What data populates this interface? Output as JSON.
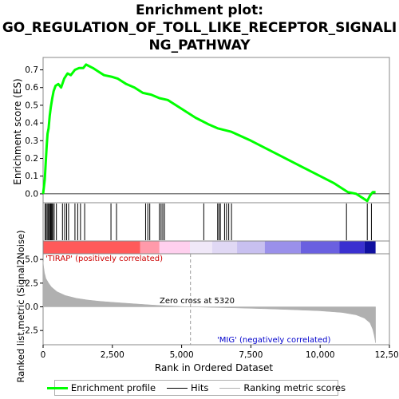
{
  "chart_data": {
    "type": "line",
    "title": "Enrichment plot: GO_REGULATION_OF_TOLL_LIKE_RECEPTOR_SIGNALING_PATHWAY",
    "title_lines": [
      "Enrichment plot:",
      "GO_REGULATION_OF_TOLL_LIKE_RECEPTOR_SIGNALI",
      "NG_PATHWAY"
    ],
    "xlabel": "Rank in Ordered Dataset",
    "xlim": [
      0,
      12500
    ],
    "x_ticks": [
      0,
      2500,
      5000,
      7500,
      10000,
      12500
    ],
    "x_tick_labels": [
      "0",
      "2,500",
      "5,000",
      "7,500",
      "10,000",
      "12,500"
    ],
    "es_panel": {
      "ylabel": "Enrichment score (ES)",
      "ylim": [
        -0.05,
        0.77
      ],
      "y_ticks": [
        0.0,
        0.1,
        0.2,
        0.3,
        0.4,
        0.5,
        0.6,
        0.7
      ],
      "y_tick_labels": [
        "0.0",
        "0.1",
        "0.2",
        "0.3",
        "0.4",
        "0.5",
        "0.6",
        "0.7"
      ],
      "line_color": "#00ff00",
      "x": [
        0,
        60,
        90,
        130,
        160,
        200,
        240,
        280,
        330,
        380,
        450,
        550,
        650,
        760,
        880,
        1000,
        1150,
        1300,
        1450,
        1550,
        1800,
        2000,
        2200,
        2500,
        2700,
        3000,
        3300,
        3600,
        3900,
        4200,
        4500,
        5000,
        5500,
        6000,
        6300,
        6800,
        7500,
        8500,
        9500,
        10500,
        11000,
        11300,
        11700,
        11800,
        11900,
        12000
      ],
      "y": [
        0.0,
        0.08,
        0.16,
        0.27,
        0.34,
        0.37,
        0.44,
        0.49,
        0.54,
        0.58,
        0.61,
        0.62,
        0.6,
        0.65,
        0.68,
        0.67,
        0.7,
        0.71,
        0.71,
        0.73,
        0.71,
        0.69,
        0.67,
        0.66,
        0.65,
        0.62,
        0.6,
        0.57,
        0.56,
        0.54,
        0.53,
        0.48,
        0.43,
        0.39,
        0.37,
        0.35,
        0.3,
        0.22,
        0.14,
        0.06,
        0.01,
        0.0,
        -0.04,
        -0.01,
        0.01,
        0.01
      ]
    },
    "hits": {
      "color": "#000000",
      "positions": [
        70,
        110,
        150,
        190,
        230,
        260,
        290,
        320,
        350,
        400,
        480,
        700,
        780,
        850,
        920,
        1150,
        1250,
        1350,
        1500,
        2450,
        2650,
        3700,
        3780,
        3850,
        4200,
        4260,
        4320,
        4380,
        5800,
        6300,
        6350,
        6400,
        6550,
        6620,
        6700,
        6800,
        10950,
        11700,
        11850
      ]
    },
    "rank_metric": {
      "ylabel": "Ranked list metric (Signal2Noise)",
      "ylim": [
        -4.0,
        5.6
      ],
      "y_ticks": [
        -2.5,
        0.0,
        2.5,
        5.0
      ],
      "y_tick_labels": [
        "-2.5",
        "0.0",
        "2.5",
        "5.0"
      ],
      "fill_color": "#b0b0b0",
      "x": [
        0,
        20,
        50,
        100,
        200,
        300,
        500,
        800,
        1200,
        1600,
        2000,
        2500,
        3000,
        4000,
        5000,
        5320,
        6000,
        7000,
        8000,
        9000,
        10000,
        10800,
        11300,
        11600,
        11800,
        11900,
        11950,
        12000
      ],
      "y": [
        4.8,
        4.2,
        3.6,
        3.0,
        2.5,
        2.1,
        1.6,
        1.2,
        0.9,
        0.72,
        0.6,
        0.48,
        0.38,
        0.18,
        0.03,
        0.0,
        -0.05,
        -0.12,
        -0.2,
        -0.3,
        -0.42,
        -0.6,
        -0.85,
        -1.2,
        -1.7,
        -2.4,
        -3.0,
        -3.8
      ],
      "positive_label": "'TIRAP' (positively correlated)",
      "positive_color": "#cc0000",
      "negative_label": "'MIG' (negatively correlated)",
      "negative_color": "#0000cc",
      "zero_cross_label": "Zero cross at 5320",
      "zero_cross": 5320
    },
    "color_bar": {
      "segments": [
        {
          "from": 0,
          "to": 3500,
          "color": "#ff5a5a"
        },
        {
          "from": 3500,
          "to": 4200,
          "color": "#ff9aaa"
        },
        {
          "from": 4200,
          "to": 5300,
          "color": "#ffd0ee"
        },
        {
          "from": 5300,
          "to": 6100,
          "color": "#f0e8f8"
        },
        {
          "from": 6100,
          "to": 7000,
          "color": "#e0d8f4"
        },
        {
          "from": 7000,
          "to": 8000,
          "color": "#c8c0f0"
        },
        {
          "from": 8000,
          "to": 9300,
          "color": "#9a90ea"
        },
        {
          "from": 9300,
          "to": 10700,
          "color": "#6a60e0"
        },
        {
          "from": 10700,
          "to": 11600,
          "color": "#3a30d0"
        },
        {
          "from": 11600,
          "to": 12000,
          "color": "#1010a0"
        }
      ]
    },
    "legend": [
      {
        "label": "Enrichment profile",
        "color": "#00ff00",
        "style": "thick"
      },
      {
        "label": "Hits",
        "color": "#000000",
        "style": "thin"
      },
      {
        "label": "Ranking metric scores",
        "color": "#b0b0b0",
        "style": "thin"
      }
    ]
  }
}
